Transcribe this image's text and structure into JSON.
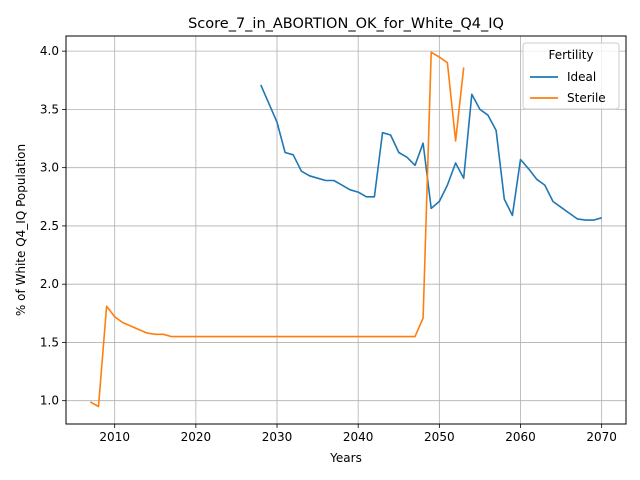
{
  "chart_data": {
    "type": "line",
    "title": "Score_7_in_ABORTION_OK_for_White_Q4_IQ",
    "xlabel": "Years",
    "ylabel": "% of White Q4_IQ Population",
    "xlim": [
      2004,
      2073
    ],
    "ylim": [
      0.8,
      4.13
    ],
    "xticks": [
      2010,
      2020,
      2030,
      2040,
      2050,
      2060,
      2070
    ],
    "yticks": [
      "1.0",
      "1.5",
      "2.0",
      "2.5",
      "3.0",
      "3.5",
      "4.0"
    ],
    "grid": true,
    "legend": {
      "title": "Fertility",
      "placement": "top-right"
    },
    "series": [
      {
        "name": "Ideal",
        "color": "#1f77b4",
        "x": [
          2028,
          2029,
          2030,
          2031,
          2032,
          2033,
          2034,
          2035,
          2036,
          2037,
          2038,
          2039,
          2040,
          2041,
          2042,
          2043,
          2044,
          2045,
          2046,
          2047,
          2048,
          2049,
          2050,
          2051,
          2052,
          2053,
          2054,
          2055,
          2056,
          2057,
          2058,
          2059,
          2060,
          2061,
          2062,
          2063,
          2064,
          2065,
          2066,
          2067,
          2068,
          2069,
          2070
        ],
        "y": [
          3.71,
          3.55,
          3.39,
          3.13,
          3.11,
          2.97,
          2.93,
          2.91,
          2.89,
          2.89,
          2.85,
          2.81,
          2.79,
          2.75,
          2.75,
          3.3,
          3.28,
          3.13,
          3.09,
          3.02,
          3.21,
          2.65,
          2.71,
          2.85,
          3.04,
          2.91,
          3.63,
          3.5,
          3.45,
          3.32,
          2.73,
          2.59,
          3.07,
          2.99,
          2.9,
          2.85,
          2.71,
          2.66,
          2.61,
          2.56,
          2.55,
          2.55,
          2.57
        ]
      },
      {
        "name": "Sterile",
        "color": "#ff7f0e",
        "x": [
          2007,
          2008,
          2009,
          2010,
          2011,
          2012,
          2013,
          2014,
          2015,
          2016,
          2017,
          2018,
          2019,
          2020,
          2025,
          2030,
          2035,
          2040,
          2045,
          2047,
          2048,
          2049,
          2050,
          2051,
          2052,
          2053
        ],
        "y": [
          0.99,
          0.95,
          1.81,
          1.72,
          1.67,
          1.64,
          1.61,
          1.58,
          1.57,
          1.57,
          1.55,
          1.55,
          1.55,
          1.55,
          1.55,
          1.55,
          1.55,
          1.55,
          1.55,
          1.55,
          1.71,
          3.99,
          3.95,
          3.9,
          3.23,
          3.86
        ]
      }
    ]
  }
}
